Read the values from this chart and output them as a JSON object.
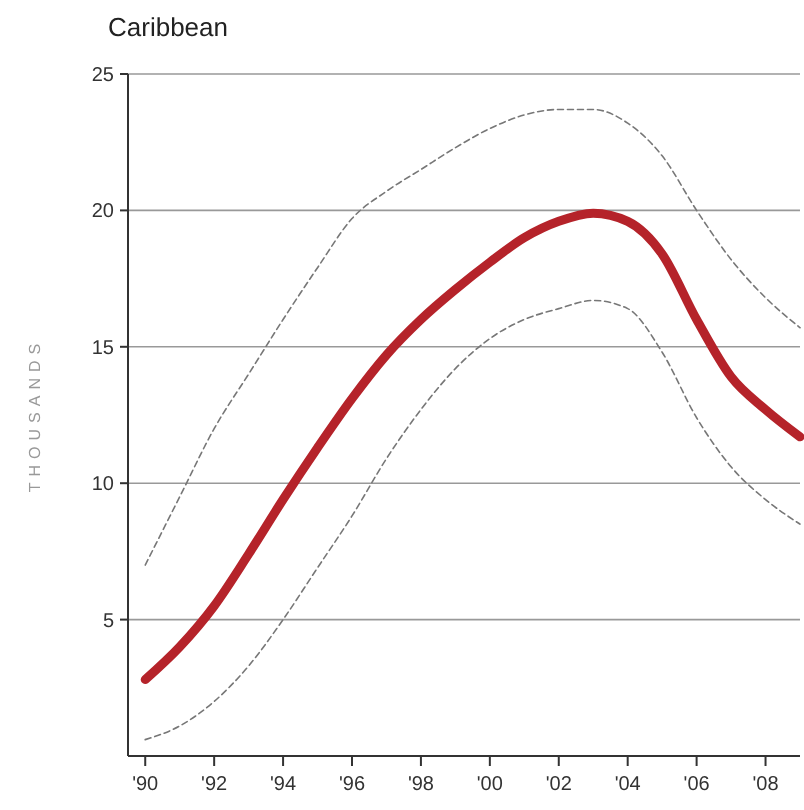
{
  "chart_data": {
    "type": "line",
    "title": "Caribbean",
    "ylabel": "THOUSANDS",
    "x": [
      1990,
      1991,
      1992,
      1993,
      1994,
      1995,
      1996,
      1997,
      1998,
      1999,
      2000,
      2001,
      2002,
      2003,
      2004,
      2005,
      2006,
      2007,
      2008,
      2009
    ],
    "series": [
      {
        "color": "#777777",
        "line_style": "dashed",
        "values": [
          0.6,
          1.1,
          2,
          3.3,
          5,
          6.9,
          8.8,
          10.9,
          12.7,
          14.2,
          15.3,
          16,
          16.4,
          16.7,
          16.4,
          14.8,
          12.4,
          10.6,
          9.4,
          8.5
        ]
      },
      {
        "color": "#777777",
        "line_style": "dashed",
        "values": [
          7,
          9.5,
          12,
          14,
          16,
          17.9,
          19.7,
          20.7,
          21.5,
          22.3,
          23,
          23.5,
          23.7,
          23.7,
          23.2,
          22,
          20,
          18.2,
          16.8,
          15.7
        ]
      },
      {
        "color": "#b5232a",
        "line_style": "solid",
        "values": [
          2.8,
          4,
          5.5,
          7.4,
          9.4,
          11.3,
          13.1,
          14.7,
          16,
          17.1,
          18.1,
          19,
          19.6,
          19.9,
          19.6,
          18.4,
          16,
          13.9,
          12.7,
          11.7
        ]
      }
    ],
    "xlim": [
      1989.5,
      2009
    ],
    "ylim": [
      0,
      25
    ],
    "xticks": [
      {
        "value": 1990,
        "label": "'90"
      },
      {
        "value": 1992,
        "label": "'92"
      },
      {
        "value": 1994,
        "label": "'94"
      },
      {
        "value": 1996,
        "label": "'96"
      },
      {
        "value": 1998,
        "label": "'98"
      },
      {
        "value": 2000,
        "label": "'00"
      },
      {
        "value": 2002,
        "label": "'02"
      },
      {
        "value": 2004,
        "label": "'04"
      },
      {
        "value": 2006,
        "label": "'06"
      },
      {
        "value": 2008,
        "label": "'08"
      }
    ],
    "yticks": [
      5,
      10,
      15,
      20,
      25
    ],
    "grid": "y",
    "marker": "none"
  }
}
